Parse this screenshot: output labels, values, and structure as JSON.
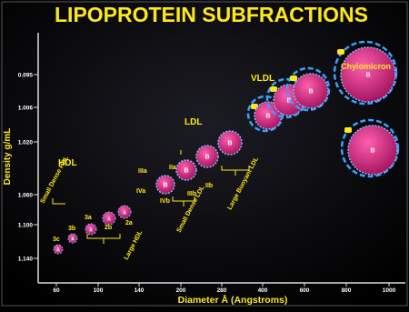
{
  "title": "LIPOPROTEIN SUBFRACTIONS",
  "axes": {
    "y_label": "Density g/mL",
    "x_label": "Diameter Å (Angstroms)",
    "y_ticks": [
      "0.095",
      "1.006",
      "1.020",
      "1.060",
      "1.100",
      "1.140"
    ],
    "x_ticks": [
      "60",
      "100",
      "140",
      "200",
      "280",
      "400",
      "600",
      "800",
      "1000"
    ]
  },
  "classes": [
    "HDL",
    "LDL",
    "VLDL",
    "Chylomicron"
  ],
  "groups": [
    "Small Dense HDL",
    "Large HDL",
    "Small Dense LDL",
    "Large Buoyant LDL"
  ],
  "subclasses": [
    "3c",
    "3b",
    "3a",
    "2b",
    "2a",
    "IIIa",
    "IVa",
    "IVb",
    "IIa",
    "I",
    "IIIb",
    "IIb"
  ],
  "particle_labels": [
    "A",
    "A",
    "A",
    "A",
    "A",
    "B",
    "B",
    "B",
    "B",
    "B",
    "B",
    "B",
    "B",
    "B"
  ]
}
